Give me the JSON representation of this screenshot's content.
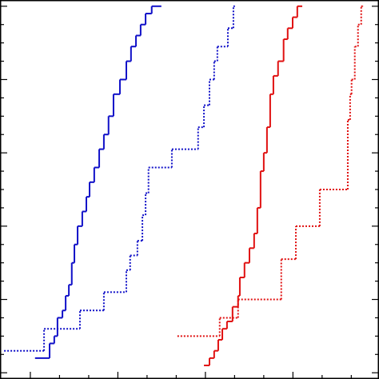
{
  "chart_data": {
    "type": "step",
    "xlim": [
      -1.04,
      11.95
    ],
    "ylim": [
      -0.017,
      1.017
    ],
    "xticks": [
      0,
      1,
      2,
      3,
      4,
      5,
      6,
      7,
      8,
      9,
      10,
      11
    ],
    "yticks": [
      0,
      0.05,
      0.1,
      0.15,
      0.2,
      0.25,
      0.3,
      0.35,
      0.4,
      0.45,
      0.5,
      0.55,
      0.6,
      0.65,
      0.7,
      0.75,
      0.8,
      0.85,
      0.9,
      0.95,
      1
    ],
    "series": [
      {
        "color": "#1010c8",
        "linestyle": "solid",
        "x": [
          0.16,
          0.66,
          0.82,
          0.93,
          1.1,
          1.21,
          1.32,
          1.42,
          1.51,
          1.62,
          1.78,
          1.92,
          2.03,
          2.19,
          2.36,
          2.52,
          2.68,
          2.85,
          3.07,
          3.29,
          3.45,
          3.62,
          3.78,
          3.95,
          4.16,
          4.49
        ],
        "values": [
          0.04,
          0.08,
          0.1,
          0.15,
          0.17,
          0.21,
          0.24,
          0.3,
          0.35,
          0.4,
          0.44,
          0.48,
          0.52,
          0.56,
          0.61,
          0.65,
          0.7,
          0.76,
          0.8,
          0.85,
          0.89,
          0.92,
          0.95,
          0.98,
          1.0,
          1.0
        ]
      },
      {
        "color": "#1010c8",
        "linestyle": "dotted",
        "x": [
          -0.9,
          0.47,
          1.7,
          2.52,
          3.29,
          3.42,
          3.67,
          3.84,
          3.95,
          4.05,
          4.85,
          5.75,
          5.95,
          6.14,
          6.3,
          6.41,
          6.77,
          6.96,
          7.01
        ],
        "values": [
          0.06,
          0.12,
          0.17,
          0.22,
          0.28,
          0.32,
          0.36,
          0.43,
          0.49,
          0.56,
          0.61,
          0.67,
          0.73,
          0.8,
          0.85,
          0.89,
          0.94,
          1.0,
          1.0
        ]
      },
      {
        "color": "#e01010",
        "linestyle": "solid",
        "x": [
          5.95,
          6.14,
          6.3,
          6.44,
          6.58,
          6.74,
          6.93,
          7.12,
          7.18,
          7.34,
          7.51,
          7.67,
          7.78,
          7.89,
          8.0,
          8.11,
          8.22,
          8.33,
          8.49,
          8.68,
          8.82,
          8.99,
          9.15,
          9.32
        ],
        "values": [
          0.02,
          0.04,
          0.06,
          0.09,
          0.12,
          0.14,
          0.18,
          0.21,
          0.26,
          0.3,
          0.34,
          0.38,
          0.45,
          0.55,
          0.6,
          0.67,
          0.76,
          0.81,
          0.85,
          0.91,
          0.94,
          0.97,
          1.0,
          1.0
        ]
      },
      {
        "color": "#e01010",
        "linestyle": "dotted",
        "x": [
          5.04,
          6.49,
          7.12,
          8.6,
          9.1,
          9.92,
          10.88,
          10.96,
          11.01,
          11.12,
          11.23,
          11.34,
          11.42
        ],
        "values": [
          0.1,
          0.15,
          0.2,
          0.31,
          0.4,
          0.5,
          0.69,
          0.76,
          0.8,
          0.89,
          0.95,
          1.0,
          1.0
        ]
      }
    ]
  }
}
